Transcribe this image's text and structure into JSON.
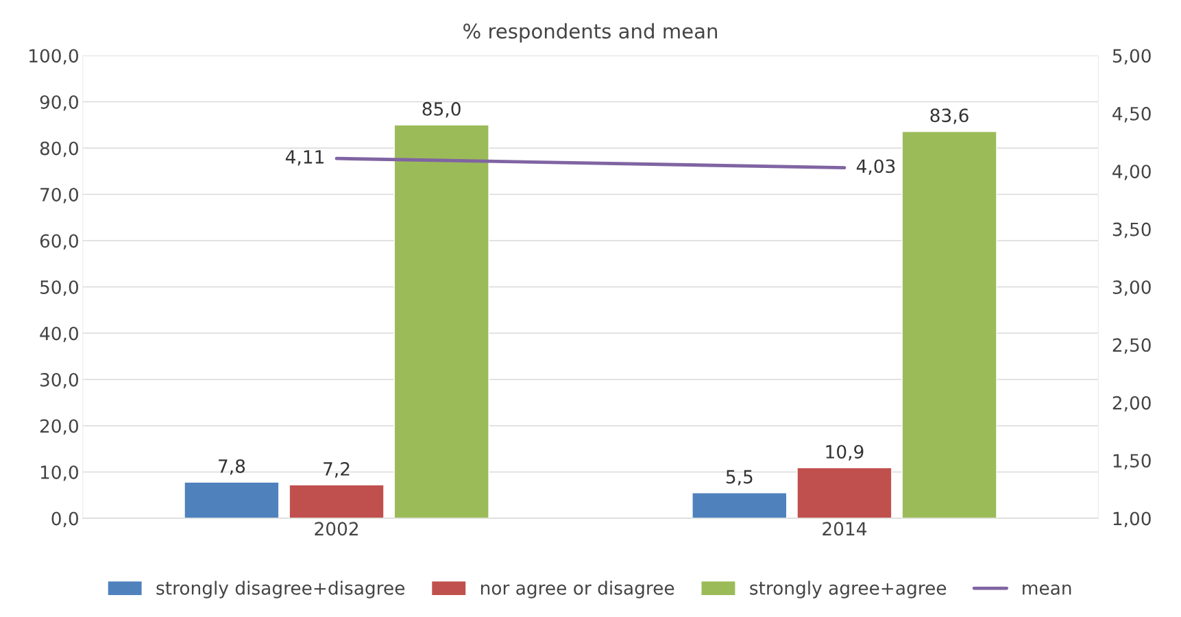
{
  "chart_data": {
    "type": "bar",
    "title": "% respondents and mean",
    "categories": [
      "2002",
      "2014"
    ],
    "series": [
      {
        "name": "strongly disagree+disagree",
        "color": "#4f81bd",
        "values": [
          7.8,
          5.5
        ],
        "value_labels": [
          "7,8",
          "5,5"
        ]
      },
      {
        "name": "nor agree or disagree",
        "color": "#c0504d",
        "values": [
          7.2,
          10.9
        ],
        "value_labels": [
          "7,2",
          "10,9"
        ]
      },
      {
        "name": "strongly agree+agree",
        "color": "#9bbb59",
        "values": [
          85.0,
          83.6
        ],
        "value_labels": [
          "85,0",
          "83,6"
        ]
      },
      {
        "name": "mean",
        "type": "line",
        "axis": "y2",
        "color": "#8064a2",
        "values": [
          4.11,
          4.03
        ],
        "value_labels": [
          "4,11",
          "4,03"
        ]
      }
    ],
    "ylim": [
      0,
      100
    ],
    "yticks": [
      {
        "value": 0,
        "label": "0,0"
      },
      {
        "value": 10,
        "label": "10,0"
      },
      {
        "value": 20,
        "label": "20,0"
      },
      {
        "value": 30,
        "label": "30,0"
      },
      {
        "value": 40,
        "label": "40,0"
      },
      {
        "value": 50,
        "label": "50,0"
      },
      {
        "value": 60,
        "label": "60,0"
      },
      {
        "value": 70,
        "label": "70,0"
      },
      {
        "value": 80,
        "label": "80,0"
      },
      {
        "value": 90,
        "label": "90,0"
      },
      {
        "value": 100,
        "label": "100,0"
      }
    ],
    "y2lim": [
      1,
      5
    ],
    "y2ticks": [
      {
        "value": 1,
        "label": "1,00"
      },
      {
        "value": 1.5,
        "label": "1,50"
      },
      {
        "value": 2,
        "label": "2,00"
      },
      {
        "value": 2.5,
        "label": "2,50"
      },
      {
        "value": 3,
        "label": "3,00"
      },
      {
        "value": 3.5,
        "label": "3,50"
      },
      {
        "value": 4,
        "label": "4,00"
      },
      {
        "value": 4.5,
        "label": "4,50"
      },
      {
        "value": 5,
        "label": "5,00"
      }
    ],
    "grid": "y",
    "legend": "bottom"
  }
}
